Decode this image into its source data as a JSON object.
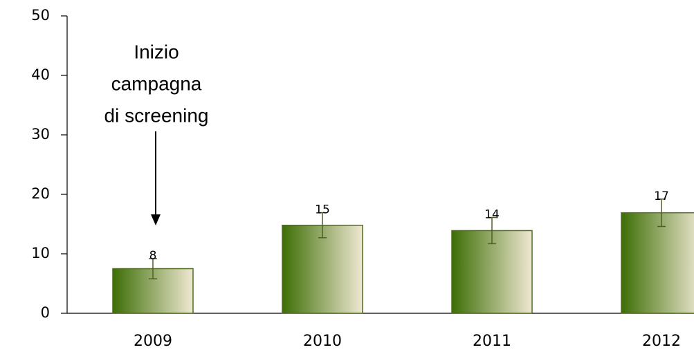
{
  "chart_data": {
    "type": "bar",
    "categories": [
      "2009",
      "2010",
      "2011",
      "2012"
    ],
    "values": [
      7.5,
      14.8,
      13.9,
      16.9
    ],
    "value_labels": [
      "8",
      "15",
      "14",
      "17"
    ],
    "errors": [
      1.7,
      2.1,
      2.2,
      2.3
    ],
    "color": "#3d6e05",
    "ylim": [
      0,
      50
    ],
    "yticks": [
      0,
      10,
      20,
      30,
      40,
      50
    ],
    "annotation": [
      "Inizio",
      "campagna",
      "di screening"
    ]
  }
}
